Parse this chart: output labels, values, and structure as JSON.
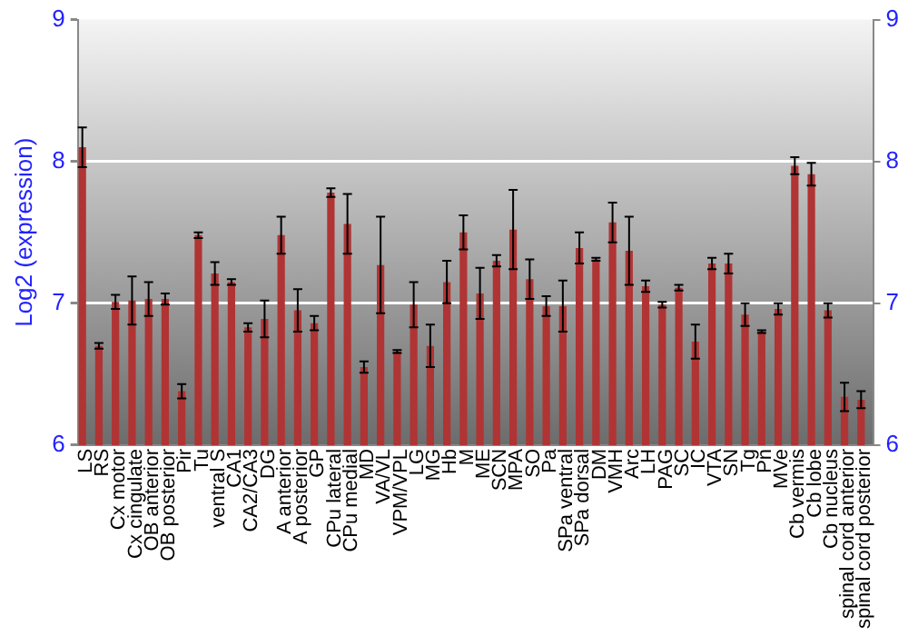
{
  "chart_data": {
    "type": "bar",
    "ylabel": "Log2 (expression)",
    "categories": [
      "LS",
      "RS",
      "Cx motor",
      "Cx cingulate",
      "OB anterior",
      "OB posterior",
      "Pir",
      "Tu",
      "ventral S",
      "CA1",
      "CA2/CA3",
      "DG",
      "A anterior",
      "A posterior",
      "GP",
      "CPu lateral",
      "CPu medial",
      "MD",
      "VA/VL",
      "VPM/VPL",
      "LG",
      "MG",
      "Hb",
      "M",
      "ME",
      "SCN",
      "MPA",
      "SO",
      "Pa",
      "SPa ventral",
      "SPa dorsal",
      "DM",
      "VMH",
      "Arc",
      "LH",
      "PAG",
      "SC",
      "IC",
      "VTA",
      "SN",
      "Tg",
      "Pn",
      "MVe",
      "Cb vermis",
      "Cb lobe",
      "Cb nucleus",
      "spinal cord anterior",
      "spinal cord posterior"
    ],
    "values": [
      8.1,
      6.7,
      7.01,
      7.02,
      7.03,
      7.03,
      6.38,
      7.48,
      7.21,
      7.15,
      6.83,
      6.89,
      7.48,
      6.95,
      6.86,
      7.78,
      7.56,
      6.55,
      7.27,
      6.66,
      6.99,
      6.7,
      7.15,
      7.5,
      7.07,
      7.3,
      7.52,
      7.17,
      6.98,
      6.98,
      7.39,
      7.31,
      7.57,
      7.37,
      7.12,
      6.99,
      7.11,
      6.73,
      7.28,
      7.28,
      6.92,
      6.8,
      6.96,
      7.97,
      7.91,
      6.95,
      6.34,
      6.32
    ],
    "errors": [
      0.14,
      0.02,
      0.05,
      0.17,
      0.12,
      0.04,
      0.05,
      0.02,
      0.08,
      0.02,
      0.03,
      0.13,
      0.13,
      0.15,
      0.05,
      0.03,
      0.21,
      0.04,
      0.34,
      0.01,
      0.16,
      0.15,
      0.15,
      0.12,
      0.18,
      0.04,
      0.28,
      0.14,
      0.07,
      0.18,
      0.11,
      0.01,
      0.14,
      0.24,
      0.04,
      0.02,
      0.02,
      0.12,
      0.04,
      0.07,
      0.08,
      0.01,
      0.04,
      0.06,
      0.08,
      0.05,
      0.1,
      0.06
    ],
    "color": "#b03434",
    "ylim": [
      6,
      9
    ],
    "yticks": [
      6,
      7,
      8,
      9
    ],
    "y2lim": [
      6,
      9
    ],
    "y2ticks": [
      6,
      7,
      8,
      9
    ],
    "grid": "y",
    "legend": false
  }
}
